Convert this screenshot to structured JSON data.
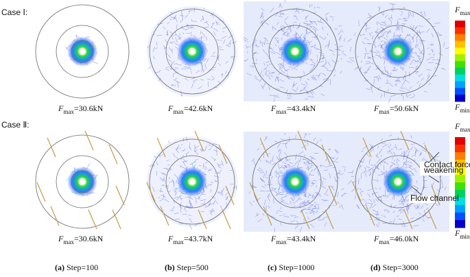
{
  "cases": [
    {
      "label": "Case Ⅰ:",
      "panels": [
        {
          "symbol": "F",
          "sub": "max",
          "value": "=30.6kN"
        },
        {
          "symbol": "F",
          "sub": "max",
          "value": "=42.6kN"
        },
        {
          "symbol": "F",
          "sub": "max",
          "value": "=43.4kN"
        },
        {
          "symbol": "F",
          "sub": "max",
          "value": "=50.6kN"
        }
      ],
      "colorbar": {
        "top": {
          "symbol": "F",
          "sub": "max"
        },
        "bottom": {
          "symbol": "F",
          "sub": "min"
        }
      }
    },
    {
      "label": "Case Ⅱ:",
      "panels": [
        {
          "symbol": "F",
          "sub": "max",
          "value": "=30.6kN"
        },
        {
          "symbol": "F",
          "sub": "max",
          "value": "=43.7kN"
        },
        {
          "symbol": "F",
          "sub": "max",
          "value": "=43.4kN"
        },
        {
          "symbol": "F",
          "sub": "max",
          "value": "=46.0kN"
        }
      ],
      "colorbar": {
        "top": {
          "symbol": "F",
          "sub": "max"
        },
        "bottom": {
          "symbol": "F",
          "sub": "min"
        }
      }
    }
  ],
  "annotations": {
    "weakening": [
      "Contact force",
      "weakening"
    ],
    "channel": "Flow channel"
  },
  "captions": [
    {
      "letter": "(a)",
      "text": " Step=100"
    },
    {
      "letter": "(b)",
      "text": " Step=500"
    },
    {
      "letter": "(c)",
      "text": " Step=1000"
    },
    {
      "letter": "(d)",
      "text": " Step=3000"
    }
  ]
}
